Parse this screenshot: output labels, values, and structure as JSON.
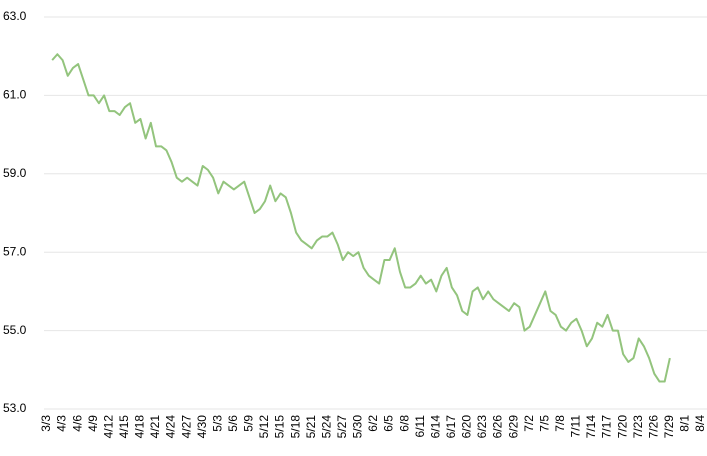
{
  "chart_data": {
    "type": "line",
    "categories": [
      "3/3",
      null,
      null,
      "4/3",
      null,
      null,
      "4/6",
      null,
      null,
      "4/9",
      null,
      null,
      "4/12",
      null,
      null,
      "4/15",
      null,
      null,
      "4/18",
      null,
      null,
      "4/21",
      null,
      null,
      "4/24",
      null,
      null,
      "4/27",
      null,
      null,
      "4/30",
      null,
      null,
      "5/3",
      null,
      null,
      "5/6",
      null,
      null,
      "5/9",
      null,
      null,
      "5/12",
      null,
      null,
      "5/15",
      null,
      null,
      "5/18",
      null,
      null,
      "5/21",
      null,
      null,
      "5/24",
      null,
      null,
      "5/27",
      null,
      null,
      "5/30",
      null,
      null,
      "6/2",
      null,
      null,
      "6/5",
      null,
      null,
      "6/8",
      null,
      null,
      "6/11",
      null,
      null,
      "6/14",
      null,
      null,
      "6/17",
      null,
      null,
      "6/20",
      null,
      null,
      "6/23",
      null,
      null,
      "6/26",
      null,
      null,
      "6/29",
      null,
      null,
      "7/2",
      null,
      null,
      "7/5",
      null,
      null,
      "7/8",
      null,
      null,
      "7/11",
      null,
      null,
      "7/14",
      null,
      null,
      "7/17",
      null,
      null,
      "7/20",
      null,
      null,
      "7/23",
      null,
      null,
      "7/26",
      null,
      null,
      "7/29",
      null,
      null,
      "8/1",
      null,
      null,
      "8/4"
    ],
    "series": [
      {
        "color": "#93c47d",
        "values": [
          null,
          61.9,
          62.05,
          61.9,
          61.5,
          61.7,
          61.8,
          61.4,
          61.0,
          61.0,
          60.8,
          61.0,
          60.6,
          60.6,
          60.5,
          60.7,
          60.8,
          60.3,
          60.4,
          59.9,
          60.3,
          59.7,
          59.7,
          59.6,
          59.3,
          58.9,
          58.8,
          58.9,
          58.8,
          58.7,
          59.2,
          59.1,
          58.9,
          58.5,
          58.8,
          58.7,
          58.6,
          58.7,
          58.8,
          58.4,
          58.0,
          58.1,
          58.3,
          58.7,
          58.3,
          58.5,
          58.4,
          58.0,
          57.5,
          57.3,
          57.2,
          57.1,
          57.3,
          57.4,
          57.4,
          57.5,
          57.2,
          56.8,
          57.0,
          56.9,
          57.0,
          56.6,
          56.4,
          56.3,
          56.2,
          56.8,
          56.8,
          57.1,
          56.5,
          56.1,
          56.1,
          56.2,
          56.4,
          56.2,
          56.3,
          56.0,
          56.4,
          56.6,
          56.1,
          55.9,
          55.5,
          55.4,
          56.0,
          56.1,
          55.8,
          56.0,
          55.8,
          55.7,
          55.6,
          55.5,
          55.7,
          55.6,
          55.0,
          55.1,
          55.4,
          55.7,
          56.0,
          55.5,
          55.4,
          55.1,
          55.0,
          55.2,
          55.3,
          55.0,
          54.6,
          54.8,
          55.2,
          55.1,
          55.4,
          55.0,
          55.0,
          54.4,
          54.2,
          54.3,
          54.8,
          54.6,
          54.3,
          53.9,
          53.7,
          53.7,
          54.3,
          null,
          null,
          null,
          null,
          null,
          null
        ]
      }
    ],
    "ylim": [
      53,
      63
    ],
    "yticks": [
      {
        "value": 53,
        "label": "53.0"
      },
      {
        "value": 55,
        "label": "55.0"
      },
      {
        "value": 57,
        "label": "57.0"
      },
      {
        "value": 59,
        "label": "59.0"
      },
      {
        "value": 61,
        "label": "61.0"
      },
      {
        "value": 63,
        "label": "63.0"
      }
    ],
    "grid": true
  }
}
